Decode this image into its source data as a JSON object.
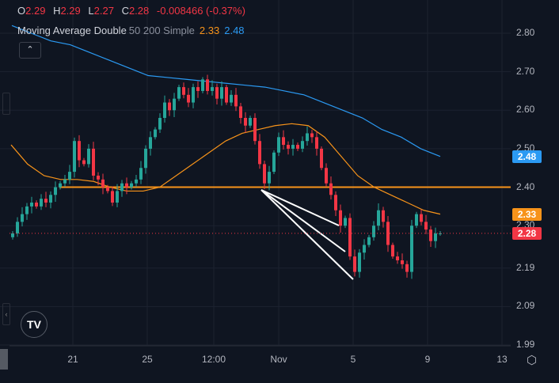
{
  "legend": {
    "o_label": "O",
    "o": "2.29",
    "h_label": "H",
    "h": "2.29",
    "l_label": "L",
    "l": "2.27",
    "c_label": "C",
    "c": "2.28",
    "change": "-0.008466 (-0.37%)"
  },
  "indicator": {
    "name": "Moving Average Double",
    "params": "50 200 Simple",
    "ma50_value": "2.33",
    "ma200_value": "2.48",
    "collapse_icon": "chevron-up"
  },
  "colors": {
    "up": "#26a69a",
    "down": "#f23645",
    "ma50": "#f7931a",
    "ma200": "#2b9af3",
    "background": "#0f1521",
    "hline": "#f7931a",
    "trendline": "#ffffff"
  },
  "price_axis": {
    "labels": [
      "2.80",
      "2.70",
      "2.60",
      "2.50",
      "2.40",
      "2.30",
      "2.19",
      "2.09",
      "1.99"
    ],
    "tags": [
      {
        "text": "2.48",
        "price": 2.48,
        "color": "#2b9af3"
      },
      {
        "text": "2.33",
        "price": 2.33,
        "color": "#f7931a"
      },
      {
        "text": "2.28",
        "price": 2.28,
        "color": "#f23645"
      }
    ]
  },
  "time_axis": {
    "labels": [
      "21",
      "25",
      "12:00",
      "Nov",
      "5",
      "9",
      "13"
    ]
  },
  "horizontal_line": {
    "price": 2.4
  },
  "last_price": 2.28,
  "chart_data": {
    "type": "candlestick",
    "first_open": 2.27,
    "closes": [
      2.28,
      2.31,
      2.33,
      2.35,
      2.36,
      2.35,
      2.37,
      2.36,
      2.38,
      2.4,
      2.41,
      2.42,
      2.44,
      2.52,
      2.47,
      2.46,
      2.5,
      2.43,
      2.42,
      2.4,
      2.39,
      2.36,
      2.39,
      2.41,
      2.4,
      2.41,
      2.42,
      2.45,
      2.5,
      2.53,
      2.55,
      2.58,
      2.62,
      2.6,
      2.63,
      2.66,
      2.64,
      2.62,
      2.66,
      2.65,
      2.68,
      2.65,
      2.66,
      2.63,
      2.66,
      2.62,
      2.64,
      2.61,
      2.58,
      2.56,
      2.58,
      2.52,
      2.46,
      2.41,
      2.44,
      2.49,
      2.53,
      2.51,
      2.5,
      2.51,
      2.5,
      2.52,
      2.54,
      2.53,
      2.5,
      2.45,
      2.41,
      2.38,
      2.34,
      2.3,
      2.32,
      2.22,
      2.18,
      2.23,
      2.25,
      2.27,
      2.3,
      2.34,
      2.31,
      2.25,
      2.22,
      2.21,
      2.2,
      2.18,
      2.3,
      2.33,
      2.31,
      2.29,
      2.26,
      2.28,
      2.28
    ],
    "ma200": [
      2.82,
      2.8,
      2.78,
      2.77,
      2.75,
      2.73,
      2.71,
      2.69,
      2.685,
      2.68,
      2.675,
      2.67,
      2.665,
      2.66,
      2.65,
      2.64,
      2.62,
      2.6,
      2.58,
      2.55,
      2.53,
      2.5,
      2.48
    ],
    "ma50": [
      2.51,
      2.46,
      2.43,
      2.42,
      2.42,
      2.415,
      2.4,
      2.39,
      2.39,
      2.4,
      2.43,
      2.46,
      2.49,
      2.52,
      2.54,
      2.55,
      2.56,
      2.565,
      2.56,
      2.53,
      2.48,
      2.43,
      2.4,
      2.38,
      2.36,
      2.34,
      2.33
    ],
    "ylim": [
      1.99,
      2.8
    ]
  }
}
